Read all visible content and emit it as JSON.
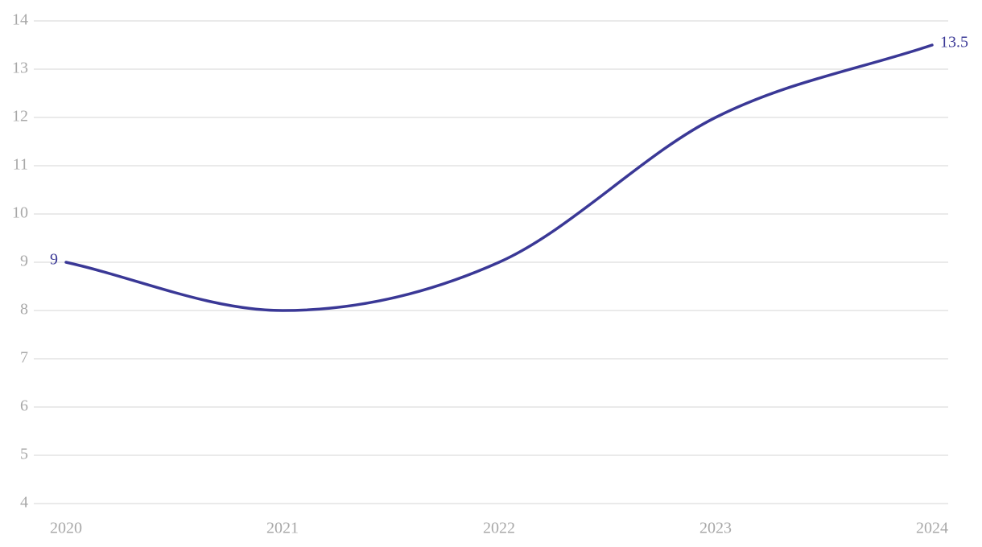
{
  "chart_data": {
    "type": "line",
    "categories": [
      "2020",
      "2021",
      "2022",
      "2023",
      "2024"
    ],
    "series": [
      {
        "color": "#3a3896",
        "values": [
          9,
          8,
          9,
          12,
          13.5
        ]
      }
    ],
    "ylim": [
      4,
      14
    ],
    "yticks": [
      4,
      5,
      6,
      7,
      8,
      9,
      10,
      11,
      12,
      13,
      14
    ],
    "grid": true
  }
}
